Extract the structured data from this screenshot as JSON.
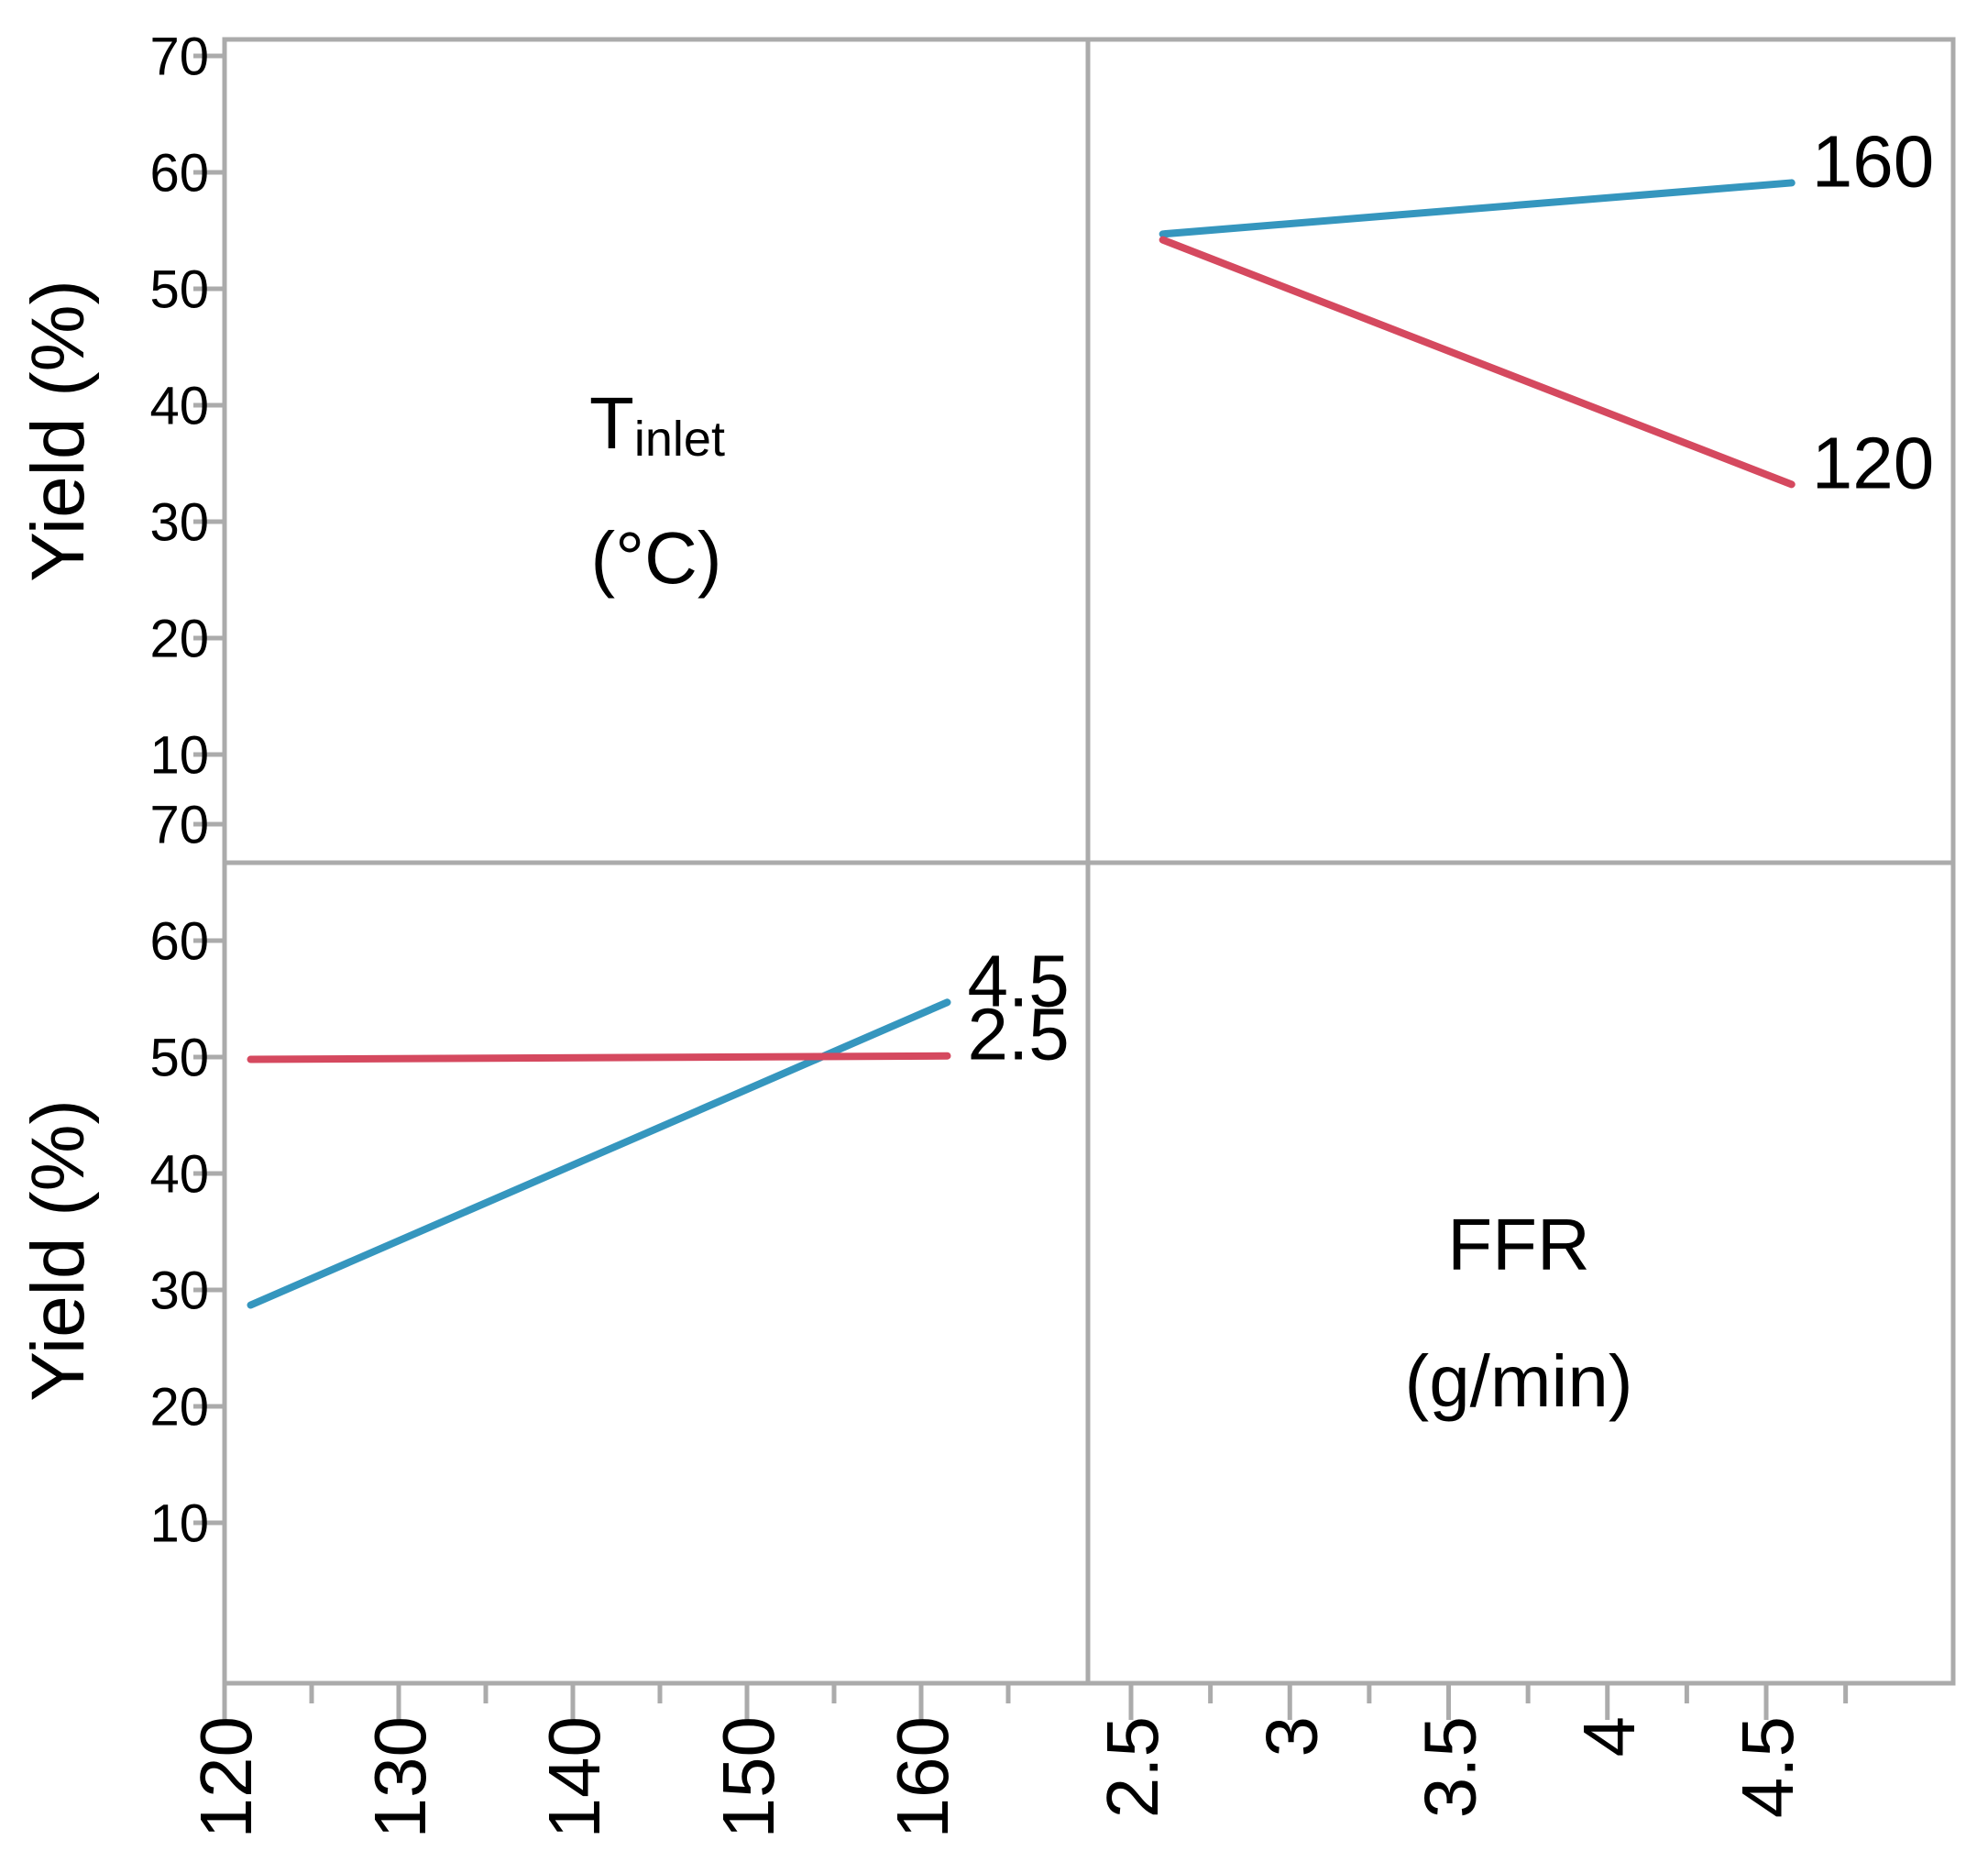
{
  "figure": {
    "y_axis_title": "Yield (%)",
    "frame_color": "#ABABAB",
    "text_color": "#000000",
    "panel_labels": {
      "top_left": {
        "main": "T",
        "subscript": "inlet",
        "unit": "(°C)"
      },
      "bottom_right": {
        "main": "FFR",
        "unit": "(g/min)"
      }
    }
  },
  "chart_data": [
    {
      "type": "line",
      "panel": "top-right",
      "x_factor": "FFR (g/min)",
      "x": [
        2.5,
        4.5
      ],
      "x_ticks": [
        2.5,
        3,
        3.5,
        4,
        4.5
      ],
      "x_tick_labels": [
        "2.5",
        "3",
        "3.5",
        "4",
        "4.5"
      ],
      "x_minor_ticks": [
        2.75,
        3.25,
        3.75,
        4.25,
        4.75
      ],
      "ylabel": "Yield (%)",
      "ylim": [
        10,
        70
      ],
      "y_ticks": [
        70,
        60,
        50,
        40,
        30,
        20,
        10
      ],
      "grid": false,
      "legend_position": "line-end-labels",
      "series": [
        {
          "name": "160",
          "color": "#3596BE",
          "values": [
            54.7,
            59.1
          ]
        },
        {
          "name": "120",
          "color": "#D5495F",
          "values": [
            54.2,
            33.2
          ]
        }
      ]
    },
    {
      "type": "line",
      "panel": "bottom-left",
      "x_factor": "Tinlet (°C)",
      "x": [
        120,
        160
      ],
      "x_ticks": [
        120,
        130,
        140,
        150,
        160
      ],
      "x_tick_labels": [
        "120",
        "130",
        "140",
        "150",
        "160"
      ],
      "x_minor_ticks": [
        125,
        135,
        145,
        155,
        165
      ],
      "ylabel": "Yield (%)",
      "ylim": [
        10,
        70
      ],
      "y_ticks": [
        70,
        60,
        50,
        40,
        30,
        20,
        10
      ],
      "grid": false,
      "legend_position": "line-end-labels",
      "series": [
        {
          "name": "4.5",
          "color": "#3596BE",
          "values": [
            28.7,
            54.7
          ]
        },
        {
          "name": "2.5",
          "color": "#D5495F",
          "values": [
            49.8,
            50.1
          ]
        }
      ]
    }
  ]
}
